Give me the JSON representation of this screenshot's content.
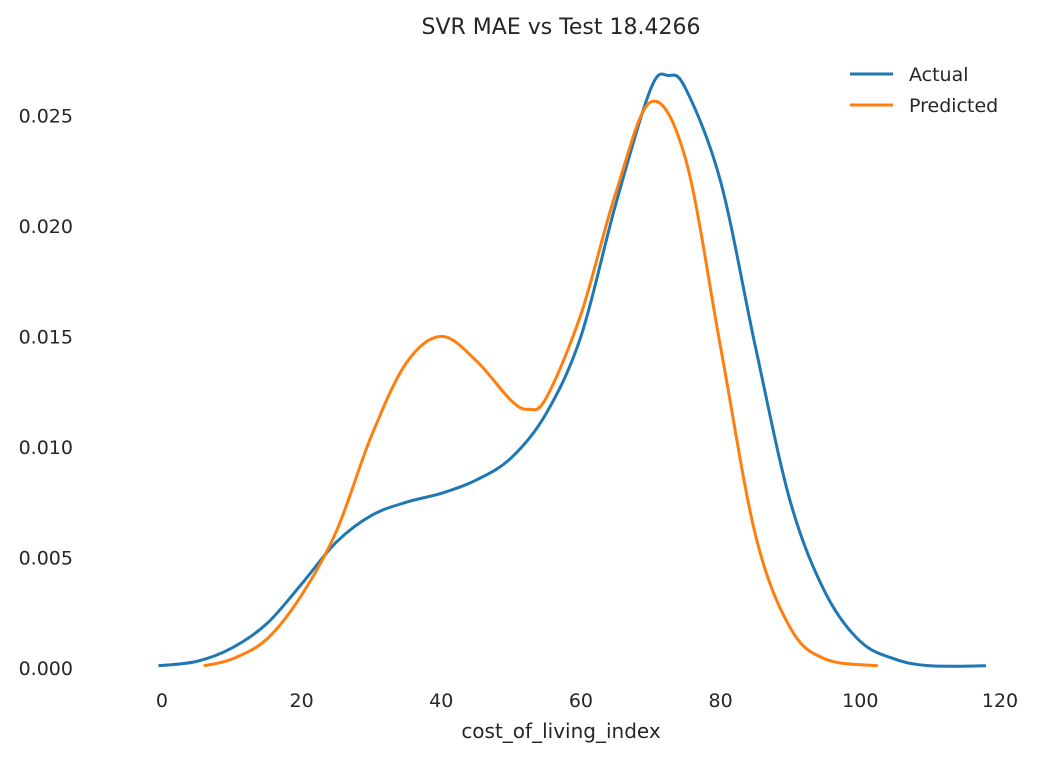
{
  "chart_data": {
    "type": "line",
    "title": "SVR MAE vs Test 18.4266",
    "xlabel": "cost_of_living_index",
    "ylabel": "",
    "xlim": [
      -6,
      120
    ],
    "ylim": [
      0,
      0.0275
    ],
    "x_ticks": [
      0,
      20,
      40,
      60,
      80,
      100,
      120
    ],
    "x_tick_labels": [
      "0",
      "20",
      "40",
      "60",
      "80",
      "100",
      "120"
    ],
    "y_ticks": [
      0,
      0.005,
      0.01,
      0.015,
      0.02,
      0.025
    ],
    "y_tick_labels": [
      "0.000",
      "0.005",
      "0.010",
      "0.015",
      "0.020",
      "0.025"
    ],
    "grid": false,
    "legend_position": "top-right",
    "series": [
      {
        "name": "Actual",
        "color": "#1f77b4",
        "points": [
          [
            -0.5,
            0.0001
          ],
          [
            5,
            0.0003
          ],
          [
            10,
            0.0009
          ],
          [
            15,
            0.002
          ],
          [
            20,
            0.0038
          ],
          [
            25,
            0.0057
          ],
          [
            30,
            0.0069
          ],
          [
            35,
            0.0075
          ],
          [
            40,
            0.0079
          ],
          [
            45,
            0.0085
          ],
          [
            50,
            0.0095
          ],
          [
            55,
            0.0115
          ],
          [
            60,
            0.015
          ],
          [
            65,
            0.021
          ],
          [
            70,
            0.0262
          ],
          [
            72.5,
            0.0268
          ],
          [
            75,
            0.0262
          ],
          [
            80,
            0.022
          ],
          [
            85,
            0.0145
          ],
          [
            90,
            0.0075
          ],
          [
            95,
            0.0034
          ],
          [
            100,
            0.0012
          ],
          [
            105,
            0.0004
          ],
          [
            110,
            0.0001
          ],
          [
            118,
            0.0001
          ]
        ]
      },
      {
        "name": "Predicted",
        "color": "#ff7f0e",
        "points": [
          [
            6,
            0.0001
          ],
          [
            10,
            0.0004
          ],
          [
            15,
            0.0013
          ],
          [
            20,
            0.0033
          ],
          [
            25,
            0.0062
          ],
          [
            30,
            0.0105
          ],
          [
            35,
            0.0138
          ],
          [
            40,
            0.015
          ],
          [
            45,
            0.0139
          ],
          [
            50,
            0.0121
          ],
          [
            52.5,
            0.0117
          ],
          [
            55,
            0.0122
          ],
          [
            60,
            0.016
          ],
          [
            65,
            0.0215
          ],
          [
            70,
            0.0256
          ],
          [
            75,
            0.023
          ],
          [
            80,
            0.0145
          ],
          [
            85,
            0.006
          ],
          [
            90,
            0.0018
          ],
          [
            95,
            0.0004
          ],
          [
            102.5,
            0.0001
          ]
        ]
      }
    ]
  }
}
